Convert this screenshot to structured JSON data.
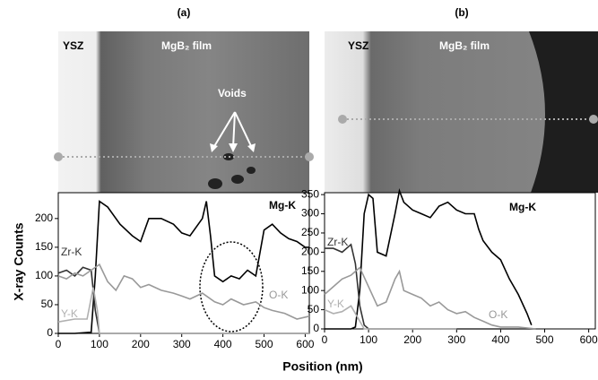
{
  "chart_data": [
    {
      "type": "line",
      "title": "(a)",
      "ylabel": "X-ray Counts",
      "xlabel": "Position (nm)",
      "annotations": [
        "YSZ",
        "MgB₂ film",
        "Voids"
      ],
      "xlim": [
        0,
        610
      ],
      "ylim": [
        0,
        245
      ],
      "xticks": [
        0,
        100,
        200,
        300,
        400,
        500,
        600
      ],
      "yticks": [
        0,
        50,
        100,
        150,
        200
      ],
      "series": [
        {
          "name": "Mg-K",
          "color": "#000000",
          "x": [
            0,
            40,
            80,
            90,
            100,
            120,
            150,
            180,
            200,
            220,
            250,
            280,
            300,
            320,
            350,
            360,
            370,
            380,
            400,
            420,
            440,
            460,
            480,
            500,
            520,
            540,
            560,
            580,
            600,
            610
          ],
          "values": [
            0,
            0,
            2,
            100,
            230,
            220,
            190,
            170,
            160,
            200,
            200,
            190,
            175,
            170,
            200,
            230,
            170,
            100,
            90,
            100,
            95,
            110,
            100,
            180,
            190,
            175,
            165,
            160,
            150,
            150
          ]
        },
        {
          "name": "Zr-K",
          "color": "#333333",
          "x": [
            0,
            20,
            40,
            60,
            80,
            90,
            100,
            200,
            300,
            400,
            500,
            610
          ],
          "values": [
            105,
            110,
            100,
            115,
            110,
            40,
            0,
            0,
            0,
            0,
            0,
            0
          ]
        },
        {
          "name": "O-K",
          "color": "#999999",
          "x": [
            0,
            20,
            40,
            60,
            80,
            100,
            120,
            140,
            160,
            180,
            200,
            220,
            250,
            280,
            300,
            320,
            350,
            380,
            400,
            420,
            450,
            480,
            500,
            520,
            550,
            580,
            610
          ],
          "values": [
            100,
            95,
            105,
            100,
            110,
            120,
            90,
            75,
            100,
            95,
            80,
            85,
            75,
            70,
            65,
            60,
            70,
            55,
            50,
            60,
            50,
            55,
            45,
            40,
            35,
            25,
            30
          ]
        },
        {
          "name": "Y-K",
          "color": "#b0b0b0",
          "x": [
            0,
            40,
            70,
            85,
            95,
            100,
            300,
            610
          ],
          "values": [
            20,
            25,
            25,
            80,
            40,
            0,
            0,
            0
          ]
        }
      ]
    },
    {
      "type": "line",
      "title": "(b)",
      "annotations": [
        "YSZ",
        "MgB₂ film"
      ],
      "xlim": [
        0,
        615
      ],
      "ylim": [
        0,
        355
      ],
      "xticks": [
        0,
        100,
        200,
        300,
        400,
        500,
        600
      ],
      "yticks": [
        0,
        50,
        100,
        150,
        200,
        250,
        300,
        350
      ],
      "series": [
        {
          "name": "Mg-K",
          "color": "#000000",
          "x": [
            0,
            60,
            70,
            80,
            90,
            100,
            110,
            120,
            140,
            160,
            170,
            180,
            200,
            220,
            240,
            260,
            280,
            300,
            320,
            340,
            350,
            360,
            380,
            400,
            420,
            440,
            460,
            470
          ],
          "values": [
            0,
            0,
            5,
            100,
            300,
            350,
            340,
            200,
            190,
            300,
            360,
            330,
            310,
            300,
            290,
            320,
            330,
            310,
            300,
            300,
            260,
            230,
            200,
            180,
            130,
            90,
            40,
            10
          ]
        },
        {
          "name": "Zr-K",
          "color": "#333333",
          "x": [
            0,
            20,
            40,
            60,
            70,
            80,
            90,
            100,
            300,
            480
          ],
          "values": [
            210,
            210,
            200,
            220,
            170,
            60,
            10,
            0,
            0,
            0
          ]
        },
        {
          "name": "O-K",
          "color": "#999999",
          "x": [
            0,
            20,
            40,
            60,
            80,
            100,
            120,
            140,
            160,
            170,
            180,
            200,
            220,
            240,
            260,
            280,
            300,
            320,
            340,
            360,
            380,
            400,
            440,
            480
          ],
          "values": [
            90,
            110,
            130,
            140,
            160,
            110,
            60,
            70,
            130,
            150,
            100,
            90,
            80,
            60,
            70,
            50,
            40,
            45,
            30,
            20,
            10,
            5,
            5,
            0
          ]
        },
        {
          "name": "Y-K",
          "color": "#b0b0b0",
          "x": [
            0,
            20,
            40,
            60,
            80,
            90,
            300
          ],
          "values": [
            50,
            40,
            45,
            60,
            20,
            0,
            0
          ]
        }
      ]
    }
  ]
}
